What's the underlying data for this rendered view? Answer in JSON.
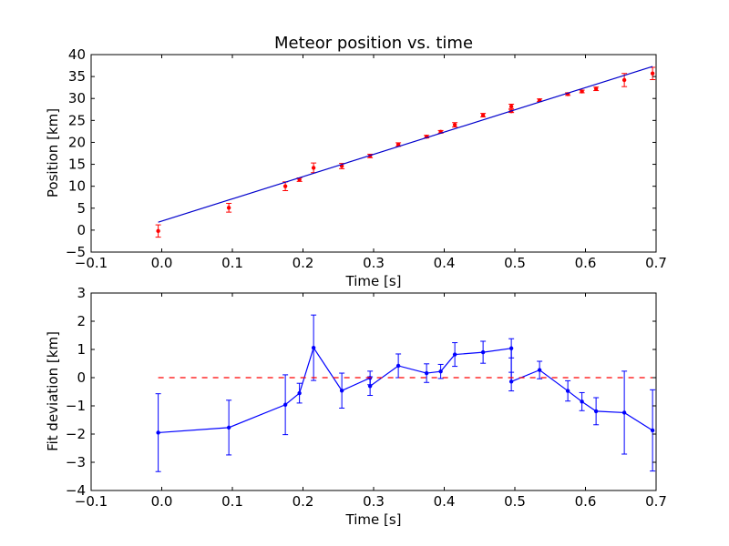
{
  "chart_data": [
    {
      "type": "scatter",
      "title": "Meteor position vs. time",
      "xlabel": "Time [s]",
      "ylabel": "Position [km]",
      "xlim": [
        -0.1,
        0.7
      ],
      "ylim": [
        -5,
        40
      ],
      "xticks": [
        -0.1,
        0.0,
        0.1,
        0.2,
        0.3,
        0.4,
        0.5,
        0.6,
        0.7
      ],
      "xtick_labels": [
        "−0.1",
        "0.0",
        "0.1",
        "0.2",
        "0.3",
        "0.4",
        "0.5",
        "0.6",
        "0.7"
      ],
      "yticks": [
        -5,
        0,
        5,
        10,
        15,
        20,
        25,
        30,
        35,
        40
      ],
      "ytick_labels": [
        "−5",
        "0",
        "5",
        "10",
        "15",
        "20",
        "25",
        "30",
        "35",
        "40"
      ],
      "series": [
        {
          "type": "errorbar",
          "color": "#ff0000",
          "marker": "o",
          "points": [
            {
              "x": -0.005,
              "y": -0.2,
              "err": 1.4
            },
            {
              "x": 0.095,
              "y": 5.1,
              "err": 1.0
            },
            {
              "x": 0.175,
              "y": 10.0,
              "err": 1.0
            },
            {
              "x": 0.195,
              "y": 11.5,
              "err": 0.4
            },
            {
              "x": 0.215,
              "y": 14.2,
              "err": 1.1
            },
            {
              "x": 0.255,
              "y": 14.6,
              "err": 0.6
            },
            {
              "x": 0.295,
              "y": 16.9,
              "err": 0.4
            },
            {
              "x": 0.335,
              "y": 19.5,
              "err": 0.4
            },
            {
              "x": 0.375,
              "y": 21.3,
              "err": 0.3
            },
            {
              "x": 0.395,
              "y": 22.4,
              "err": 0.3
            },
            {
              "x": 0.415,
              "y": 24.0,
              "err": 0.5
            },
            {
              "x": 0.455,
              "y": 26.2,
              "err": 0.4
            },
            {
              "x": 0.495,
              "y": 28.2,
              "err": 0.5
            },
            {
              "x": 0.495,
              "y": 27.1,
              "err": 0.3
            },
            {
              "x": 0.535,
              "y": 29.6,
              "err": 0.3
            },
            {
              "x": 0.575,
              "y": 31.0,
              "err": 0.3
            },
            {
              "x": 0.595,
              "y": 31.6,
              "err": 0.3
            },
            {
              "x": 0.615,
              "y": 32.2,
              "err": 0.4
            },
            {
              "x": 0.655,
              "y": 34.2,
              "err": 1.5
            },
            {
              "x": 0.695,
              "y": 35.7,
              "err": 1.4
            }
          ]
        },
        {
          "type": "line",
          "color": "#0000cc",
          "points": [
            {
              "x": -0.005,
              "y": 1.8
            },
            {
              "x": 0.695,
              "y": 37.3
            }
          ]
        }
      ],
      "grid": false
    },
    {
      "type": "line",
      "title": "",
      "xlabel": "Time [s]",
      "ylabel": "Fit deviation [km]",
      "xlim": [
        -0.1,
        0.7
      ],
      "ylim": [
        -4,
        3
      ],
      "xticks": [
        -0.1,
        0.0,
        0.1,
        0.2,
        0.3,
        0.4,
        0.5,
        0.6,
        0.7
      ],
      "xtick_labels": [
        "−0.1",
        "0.0",
        "0.1",
        "0.2",
        "0.3",
        "0.4",
        "0.5",
        "0.6",
        "0.7"
      ],
      "yticks": [
        -4,
        -3,
        -2,
        -1,
        0,
        1,
        2,
        3
      ],
      "ytick_labels": [
        "−4",
        "−3",
        "−2",
        "−1",
        "0",
        "1",
        "2",
        "3"
      ],
      "series": [
        {
          "type": "errorbar-line",
          "color": "#0000ff",
          "marker": "o",
          "points": [
            {
              "x": -0.005,
              "y": -1.95,
              "err": 1.38
            },
            {
              "x": 0.095,
              "y": -1.77,
              "err": 0.97
            },
            {
              "x": 0.175,
              "y": -0.96,
              "err": 1.06
            },
            {
              "x": 0.195,
              "y": -0.55,
              "err": 0.35
            },
            {
              "x": 0.215,
              "y": 1.06,
              "err": 1.16
            },
            {
              "x": 0.255,
              "y": -0.46,
              "err": 0.62
            },
            {
              "x": 0.295,
              "y": -0.01,
              "err": 0.24
            },
            {
              "x": 0.295,
              "y": -0.3,
              "err": 0.33
            },
            {
              "x": 0.335,
              "y": 0.42,
              "err": 0.42
            },
            {
              "x": 0.375,
              "y": 0.16,
              "err": 0.33
            },
            {
              "x": 0.395,
              "y": 0.22,
              "err": 0.25
            },
            {
              "x": 0.415,
              "y": 0.82,
              "err": 0.42
            },
            {
              "x": 0.455,
              "y": 0.9,
              "err": 0.39
            },
            {
              "x": 0.495,
              "y": 1.04,
              "err": 0.34
            },
            {
              "x": 0.495,
              "y": -0.14,
              "err": 0.33
            },
            {
              "x": 0.535,
              "y": 0.27,
              "err": 0.31
            },
            {
              "x": 0.575,
              "y": -0.47,
              "err": 0.36
            },
            {
              "x": 0.595,
              "y": -0.85,
              "err": 0.32
            },
            {
              "x": 0.615,
              "y": -1.19,
              "err": 0.48
            },
            {
              "x": 0.655,
              "y": -1.24,
              "err": 1.47
            },
            {
              "x": 0.695,
              "y": -1.87,
              "err": 1.44
            }
          ]
        },
        {
          "type": "reference-line",
          "style": "dashed",
          "color": "#ff0000",
          "points": [
            {
              "x": -0.005,
              "y": 0
            },
            {
              "x": 0.695,
              "y": 0
            }
          ]
        }
      ],
      "grid": false
    }
  ]
}
